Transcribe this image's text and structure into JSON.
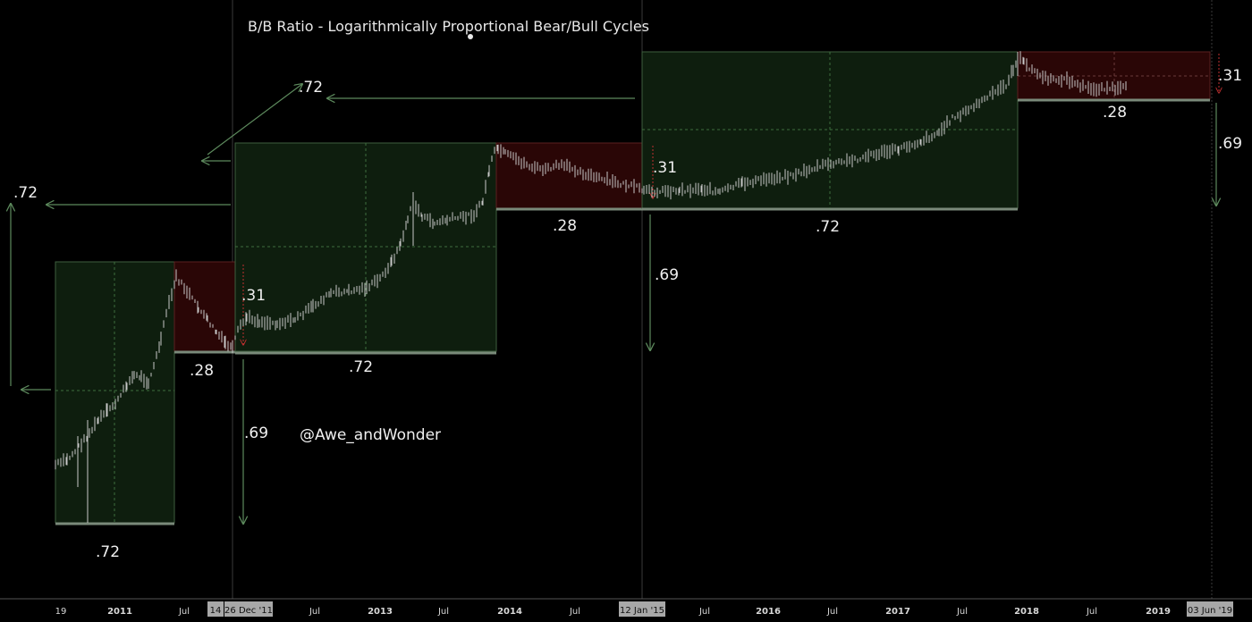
{
  "chart_data": {
    "type": "line",
    "title": "B/B Ratio - Logarithmically Proportional Bear/Bull Cycles",
    "watermark": "@Awe_andWonder",
    "scale": "log",
    "grid": false,
    "x_tick_labels": [
      {
        "label": "19",
        "bold": false
      },
      {
        "label": "2011",
        "bold": true
      },
      {
        "label": "Jul",
        "bold": false
      },
      {
        "label": "Jul",
        "bold": false
      },
      {
        "label": "2013",
        "bold": true
      },
      {
        "label": "Jul",
        "bold": false
      },
      {
        "label": "2014",
        "bold": true
      },
      {
        "label": "Jul",
        "bold": false
      },
      {
        "label": "Jul",
        "bold": false
      },
      {
        "label": "2016",
        "bold": true
      },
      {
        "label": "Jul",
        "bold": false
      },
      {
        "label": "2017",
        "bold": true
      },
      {
        "label": "Jul",
        "bold": false
      },
      {
        "label": "2018",
        "bold": true
      },
      {
        "label": "Jul",
        "bold": false
      },
      {
        "label": "2019",
        "bold": true
      }
    ],
    "highlighted_dates": [
      "14",
      "26 Dec '11",
      "12 Jan '15",
      "03 Jun '19"
    ],
    "cycles": [
      {
        "bull_ratio": ".72",
        "bear_ratio": ".28",
        "drop_ratio": ".31",
        "down_ratio": ".69"
      },
      {
        "bull_ratio": ".72",
        "bear_ratio": ".28",
        "drop_ratio": ".31",
        "down_ratio": ".69"
      },
      {
        "bull_ratio": ".72",
        "bear_ratio": ".28",
        "drop_ratio": ".31",
        "down_ratio": ".69"
      }
    ],
    "projection_labels": [
      ".72",
      ".72"
    ],
    "colors": {
      "bull_fill": "#0e1e0e",
      "bear_fill": "#2a0606",
      "box_border": "#3e5e3e",
      "arrow": "#5d8a5d",
      "drop_arrow": "#c03030",
      "candles": "#c8c8c8",
      "vline": "#3a3a3a"
    }
  }
}
